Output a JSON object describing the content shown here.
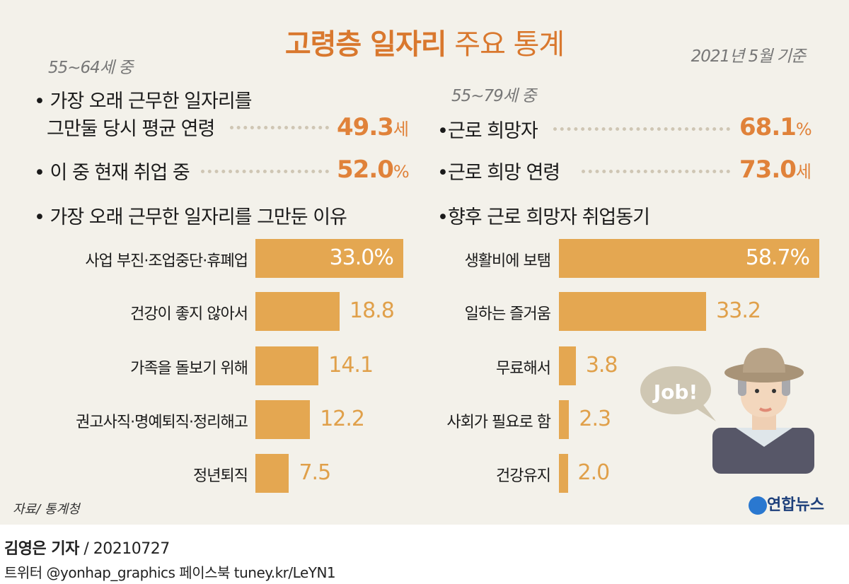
{
  "title": {
    "bold": "고령층 일자리",
    "normal": "주요 통계"
  },
  "date_note": "2021년 5월 기준",
  "left": {
    "group_label": "55~64세 중",
    "stats": [
      {
        "label_line1": "가장 오래 근무한 일자리를",
        "label_line2": "그만둘 당시 평균 연령",
        "value": "49.3",
        "unit": "세"
      },
      {
        "label": "이 중 현재 취업 중",
        "value": "52.0",
        "unit": "%"
      }
    ],
    "chart_heading": "가장 오래 근무한 일자리를 그만둔 이유"
  },
  "right": {
    "group_label": "55~79세 중",
    "stats": [
      {
        "label": "근로 희망자",
        "value": "68.1",
        "unit": "%"
      },
      {
        "label": "근로 희망 연령",
        "value": "73.0",
        "unit": "세"
      }
    ],
    "chart_heading": "향후 근로 희망자 취업동기"
  },
  "chart_data": [
    {
      "type": "bar",
      "orientation": "horizontal",
      "title": "가장 오래 근무한 일자리를 그만둔 이유",
      "unit": "%",
      "categories": [
        "사업 부진·조업중단·휴폐업",
        "건강이 좋지 않아서",
        "가족을 돌보기 위해",
        "권고사직·명예퇴직·정리해고",
        "정년퇴직"
      ],
      "values": [
        33.0,
        18.8,
        14.1,
        12.2,
        7.5
      ],
      "value_labels": [
        "33.0%",
        "18.8",
        "14.1",
        "12.2",
        "7.5"
      ]
    },
    {
      "type": "bar",
      "orientation": "horizontal",
      "title": "향후 근로 희망자 취업동기",
      "unit": "%",
      "categories": [
        "생활비에 보탬",
        "일하는 즐거움",
        "무료해서",
        "사회가 필요로 함",
        "건강유지"
      ],
      "values": [
        58.7,
        33.2,
        3.8,
        2.3,
        2.0
      ],
      "value_labels": [
        "58.7%",
        "33.2",
        "3.8",
        "2.3",
        "2.0"
      ]
    }
  ],
  "bar_color": "#e4a751",
  "accent_color": "#e0823a",
  "illustration": {
    "speech_bubble": "Job!"
  },
  "source": "자료/ 통계청",
  "logo": "연합뉴스",
  "byline": {
    "reporter": "김영은 기자",
    "date": "20210727",
    "social": "트위터 @yonhap_graphics  페이스북 tuney.kr/LeYN1"
  }
}
